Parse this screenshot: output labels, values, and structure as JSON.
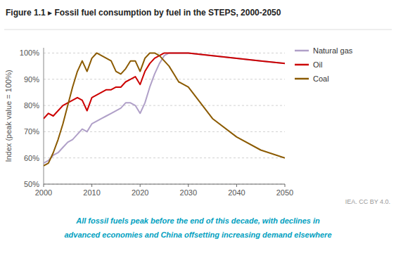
{
  "chart_data": {
    "type": "line",
    "title": "Figure 1.1 ▸ Fossil fuel consumption by fuel in the STEPS, 2000-2050",
    "y_label": "Index (peak value = 100%)",
    "annotations": [
      "All fossil fuels peak before the end of this decade, with declines in",
      "advanced economies and China offsetting increasing demand elsewhere",
      "IEA. CC BY 4.0."
    ],
    "x": [
      2000,
      2001,
      2002,
      2003,
      2004,
      2005,
      2006,
      2007,
      2008,
      2009,
      2010,
      2011,
      2012,
      2013,
      2014,
      2015,
      2016,
      2017,
      2018,
      2019,
      2020,
      2021,
      2022,
      2023,
      2024,
      2025,
      2026,
      2027,
      2028,
      2029,
      2030,
      2035,
      2040,
      2045,
      2050
    ],
    "series": [
      {
        "name": "Natural gas",
        "color": "#b0a0c8",
        "values": [
          58,
          59,
          61,
          62,
          64,
          66,
          67,
          69,
          71,
          70,
          73,
          74,
          75,
          76,
          77,
          78,
          79,
          81,
          81,
          80,
          77,
          81,
          87,
          92,
          96,
          99,
          100,
          100,
          100,
          100,
          100,
          99,
          98,
          97,
          96
        ]
      },
      {
        "name": "Oil",
        "color": "#cc0000",
        "values": [
          75,
          77,
          76,
          78,
          80,
          81,
          82,
          83,
          82,
          78,
          83,
          84,
          85,
          86,
          86,
          87,
          87,
          89,
          90,
          91,
          88,
          93,
          96,
          98,
          99,
          100,
          100,
          100,
          100,
          100,
          100,
          99,
          98,
          97,
          96
        ]
      },
      {
        "name": "Coal",
        "color": "#8b5a00",
        "values": [
          57,
          58,
          62,
          67,
          73,
          80,
          87,
          93,
          97,
          93,
          98,
          100,
          99,
          98,
          97,
          93,
          92,
          94,
          97,
          97,
          93,
          98,
          100,
          100,
          99,
          97,
          95,
          92,
          89,
          88,
          87,
          75,
          68,
          63,
          60
        ]
      }
    ],
    "xlim": [
      2000,
      2050
    ],
    "ylim": [
      50,
      102
    ],
    "xticks": [
      2000,
      2010,
      2020,
      2030,
      2040,
      2050
    ],
    "yticks": [
      {
        "value": 50,
        "label": "50%"
      },
      {
        "value": 60,
        "label": "60%"
      },
      {
        "value": 70,
        "label": "70%"
      },
      {
        "value": 80,
        "label": "80%"
      },
      {
        "value": 90,
        "label": "90%"
      },
      {
        "value": 100,
        "label": "100%"
      }
    ],
    "grid": true,
    "legend": "right"
  }
}
